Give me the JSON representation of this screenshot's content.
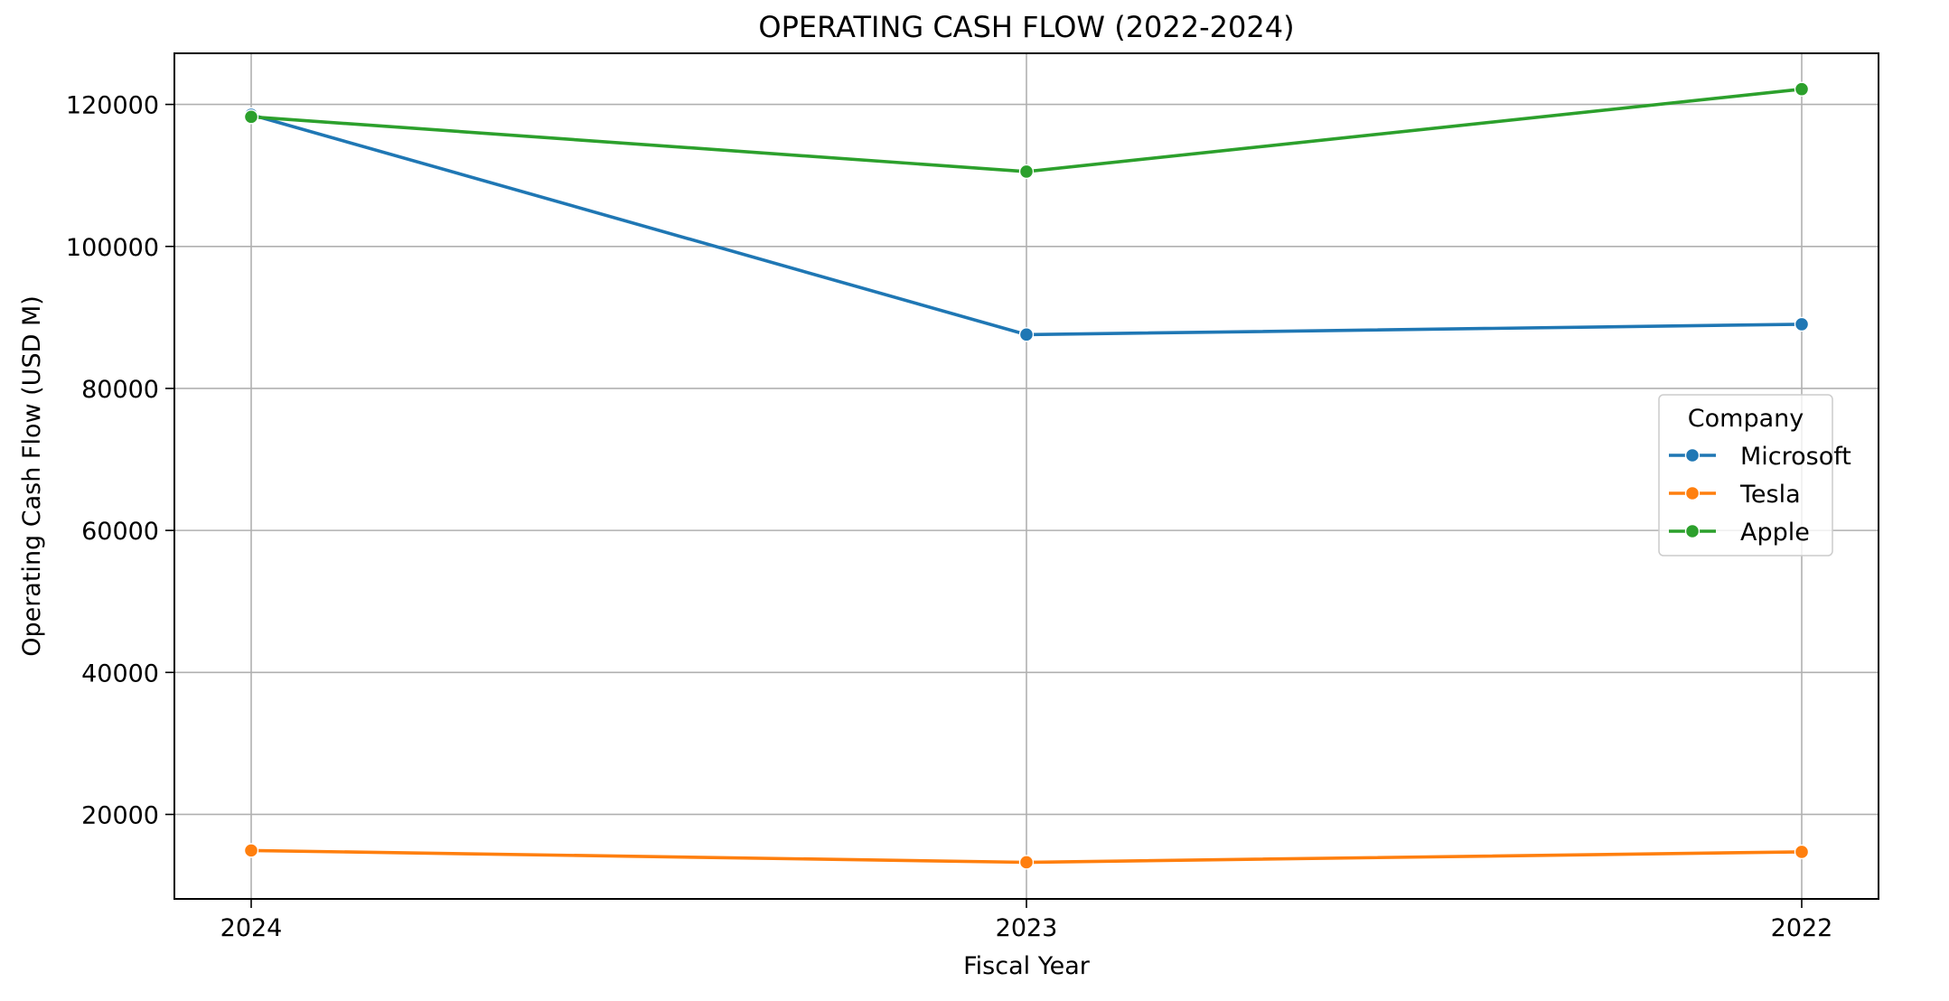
{
  "chart_data": {
    "type": "line",
    "title": "OPERATING CASH FLOW (2022-2024)",
    "xlabel": "Fiscal Year",
    "ylabel": "Operating Cash Flow (USD M)",
    "categories": [
      "2024",
      "2023",
      "2022"
    ],
    "ylim": [
      8100,
      127200
    ],
    "yticks": [
      20000,
      40000,
      60000,
      80000,
      100000,
      120000
    ],
    "grid": true,
    "legend": {
      "title": "Company",
      "placement": "center-right"
    },
    "series": [
      {
        "name": "Microsoft",
        "color": "#1f77b4",
        "values": [
          118548,
          87582,
          89035
        ]
      },
      {
        "name": "Tesla",
        "color": "#ff7f0e",
        "values": [
          14923,
          13256,
          14724
        ]
      },
      {
        "name": "Apple",
        "color": "#2ca02c",
        "values": [
          118254,
          110543,
          122151
        ]
      }
    ]
  }
}
